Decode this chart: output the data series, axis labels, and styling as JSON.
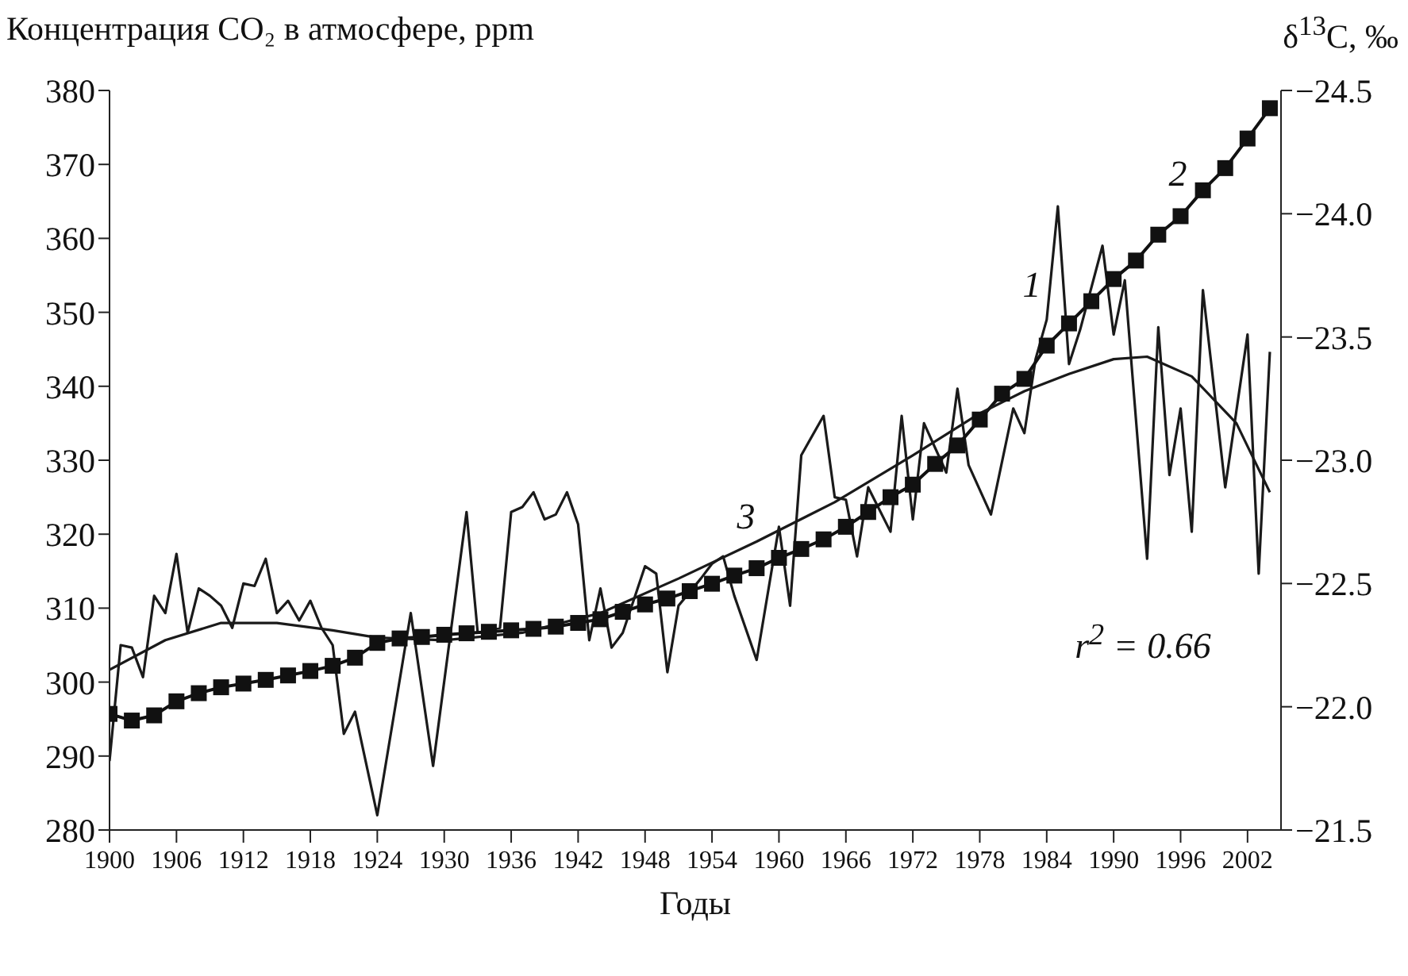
{
  "chart_data": {
    "type": "line",
    "ylabel": "Концентрация CO₂ в атмосфере, ppm",
    "y2label": "δ$^{13}$C, ‰",
    "xlabel": "Годы",
    "xlim": [
      1900,
      2005
    ],
    "xticks": [
      1900,
      1906,
      1912,
      1918,
      1924,
      1930,
      1936,
      1942,
      1948,
      1954,
      1960,
      1966,
      1972,
      1978,
      1984,
      1990,
      1996,
      2002
    ],
    "ylim": [
      280,
      380
    ],
    "yticks": [
      280,
      290,
      300,
      310,
      320,
      330,
      340,
      350,
      360,
      370,
      380
    ],
    "y2lim": [
      -21.5,
      -24.5
    ],
    "y2ticks": [
      {
        "value": -21.5,
        "label": "−21.5"
      },
      {
        "value": -22.0,
        "label": "−22.0"
      },
      {
        "value": -22.5,
        "label": "−22.5"
      },
      {
        "value": -23.0,
        "label": "−23.0"
      },
      {
        "value": -23.5,
        "label": "−23.5"
      },
      {
        "value": -24.0,
        "label": "−24.0"
      },
      {
        "value": -24.5,
        "label": "−24.5"
      }
    ],
    "line_style": "solid",
    "series": [
      {
        "type": "line",
        "axis": "y2",
        "color": "#1a1a1a",
        "marker": "none",
        "x": [
          1900,
          1901,
          1902,
          1903,
          1904,
          1905,
          1906,
          1907,
          1908,
          1909,
          1910,
          1911,
          1912,
          1913,
          1914,
          1915,
          1916,
          1917,
          1918,
          1919,
          1920,
          1921,
          1922,
          1924,
          1927,
          1929,
          1932,
          1933,
          1935,
          1936,
          1937,
          1938,
          1939,
          1940,
          1941,
          1942,
          1943,
          1944,
          1945,
          1946,
          1948,
          1949,
          1950,
          1951,
          1953,
          1954,
          1955,
          1956,
          1958,
          1960,
          1961,
          1962,
          1964,
          1965,
          1966,
          1967,
          1968,
          1970,
          1971,
          1972,
          1973,
          1975,
          1976,
          1977,
          1979,
          1981,
          1982,
          1983,
          1984,
          1985,
          1986,
          1987,
          1989,
          1990,
          1991,
          1993,
          1994,
          1995,
          1996,
          1997,
          1998,
          2000,
          2002,
          2003,
          2004
        ],
        "values": [
          -21.78,
          -22.25,
          -22.24,
          -22.12,
          -22.45,
          -22.38,
          -22.62,
          -22.3,
          -22.48,
          -22.45,
          -22.41,
          -22.32,
          -22.5,
          -22.49,
          -22.6,
          -22.38,
          -22.43,
          -22.35,
          -22.43,
          -22.32,
          -22.25,
          -21.89,
          -21.98,
          -21.56,
          -22.38,
          -21.76,
          -22.79,
          -22.3,
          -22.32,
          -22.79,
          -22.81,
          -22.87,
          -22.76,
          -22.78,
          -22.87,
          -22.74,
          -22.27,
          -22.48,
          -22.24,
          -22.3,
          -22.57,
          -22.54,
          -22.14,
          -22.41,
          -22.52,
          -22.58,
          -22.61,
          -22.45,
          -22.19,
          -22.73,
          -22.41,
          -23.02,
          -23.18,
          -22.85,
          -22.84,
          -22.61,
          -22.89,
          -22.71,
          -23.18,
          -22.76,
          -23.15,
          -22.95,
          -23.29,
          -22.98,
          -22.78,
          -23.21,
          -23.11,
          -23.41,
          -23.57,
          -24.03,
          -23.39,
          -23.53,
          -23.87,
          -23.51,
          -23.73,
          -22.6,
          -23.54,
          -22.94,
          -23.21,
          -22.71,
          -23.69,
          -22.89,
          -23.51,
          -22.54,
          -23.44
        ]
      },
      {
        "type": "line",
        "axis": "y",
        "color": "#111111",
        "marker": "square",
        "x": [
          1900,
          1902,
          1904,
          1906,
          1908,
          1910,
          1912,
          1914,
          1916,
          1918,
          1920,
          1922,
          1924,
          1926,
          1928,
          1930,
          1932,
          1934,
          1936,
          1938,
          1940,
          1942,
          1944,
          1946,
          1948,
          1950,
          1952,
          1954,
          1956,
          1958,
          1960,
          1962,
          1964,
          1966,
          1968,
          1970,
          1972,
          1974,
          1976,
          1978,
          1980,
          1982,
          1984,
          1986,
          1988,
          1990,
          1992,
          1994,
          1996,
          1998,
          2000,
          2002,
          2004
        ],
        "values": [
          295.7,
          294.8,
          295.5,
          297.4,
          298.5,
          299.3,
          299.8,
          300.3,
          300.9,
          301.5,
          302.2,
          303.3,
          305.3,
          305.9,
          306.1,
          306.4,
          306.6,
          306.8,
          307.0,
          307.2,
          307.5,
          308.0,
          308.5,
          309.5,
          310.5,
          311.3,
          312.3,
          313.3,
          314.4,
          315.4,
          316.8,
          318.0,
          319.3,
          321.0,
          323.0,
          325.0,
          326.7,
          329.5,
          332.0,
          335.5,
          339.0,
          341.0,
          345.5,
          348.5,
          351.5,
          354.5,
          357.0,
          360.5,
          363.0,
          366.5,
          369.5,
          373.5,
          377.6
        ]
      },
      {
        "type": "line",
        "axis": "y2",
        "color": "#1a1a1a",
        "marker": "none",
        "x": [
          1900,
          1905,
          1910,
          1915,
          1920,
          1924,
          1930,
          1937,
          1944,
          1951,
          1958,
          1965,
          1972,
          1978,
          1982,
          1986,
          1990,
          1993,
          1997,
          2001,
          2004
        ],
        "values": [
          -22.15,
          -22.27,
          -22.34,
          -22.34,
          -22.31,
          -22.28,
          -22.27,
          -22.3,
          -22.38,
          -22.52,
          -22.67,
          -22.83,
          -23.02,
          -23.19,
          -23.28,
          -23.35,
          -23.41,
          -23.42,
          -23.34,
          -23.15,
          -22.87
        ]
      }
    ],
    "annotations": [
      "1",
      "2",
      "3",
      "r$^{2}$ = 0.66"
    ]
  }
}
